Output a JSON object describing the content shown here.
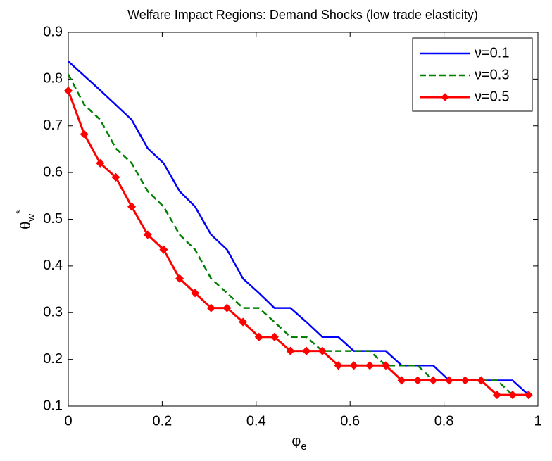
{
  "chart_data": {
    "type": "line",
    "title": "Welfare Impact Regions: Demand Shocks (low trade elasticity)",
    "xlabel": {
      "base": "φ",
      "sub": "e"
    },
    "ylabel": {
      "base": "θ",
      "sub": "w",
      "sup": "*"
    },
    "x": [
      0,
      0.034,
      0.068,
      0.101,
      0.135,
      0.169,
      0.203,
      0.237,
      0.27,
      0.304,
      0.338,
      0.372,
      0.406,
      0.439,
      0.473,
      0.507,
      0.541,
      0.575,
      0.608,
      0.642,
      0.676,
      0.71,
      0.744,
      0.777,
      0.811,
      0.845,
      0.879,
      0.913,
      0.946,
      0.98
    ],
    "series": [
      {
        "name": "ν=0.1",
        "color": "#0000ff",
        "dash": "solid",
        "marker": false,
        "values": [
          0.838,
          0.807,
          0.776,
          0.745,
          0.713,
          0.652,
          0.62,
          0.56,
          0.527,
          0.467,
          0.435,
          0.373,
          0.342,
          0.31,
          0.31,
          0.28,
          0.248,
          0.248,
          0.218,
          0.218,
          0.218,
          0.187,
          0.187,
          0.187,
          0.155,
          0.155,
          0.155,
          0.155,
          0.155,
          0.124
        ]
      },
      {
        "name": "ν=0.3",
        "color": "#007f00",
        "dash": "dashed",
        "marker": false,
        "values": [
          0.81,
          0.745,
          0.713,
          0.652,
          0.62,
          0.56,
          0.527,
          0.467,
          0.435,
          0.373,
          0.342,
          0.31,
          0.31,
          0.28,
          0.248,
          0.248,
          0.218,
          0.218,
          0.218,
          0.218,
          0.187,
          0.187,
          0.187,
          0.155,
          0.155,
          0.155,
          0.155,
          0.155,
          0.124,
          0.124
        ]
      },
      {
        "name": "ν=0.5",
        "color": "#ff0000",
        "dash": "solid",
        "marker": true,
        "values": [
          0.775,
          0.682,
          0.62,
          0.59,
          0.527,
          0.467,
          0.435,
          0.373,
          0.342,
          0.31,
          0.31,
          0.28,
          0.248,
          0.248,
          0.218,
          0.218,
          0.218,
          0.187,
          0.187,
          0.187,
          0.187,
          0.155,
          0.155,
          0.155,
          0.155,
          0.155,
          0.155,
          0.124,
          0.124,
          0.124
        ]
      }
    ],
    "xlim": [
      0,
      1
    ],
    "xticks": [
      0,
      0.2,
      0.4,
      0.6,
      0.8,
      1
    ],
    "ylim": [
      0.1,
      0.9
    ],
    "yticks": [
      0.1,
      0.2,
      0.3,
      0.4,
      0.5,
      0.6,
      0.7,
      0.8,
      0.9
    ],
    "grid": false,
    "legend": "upper right"
  }
}
